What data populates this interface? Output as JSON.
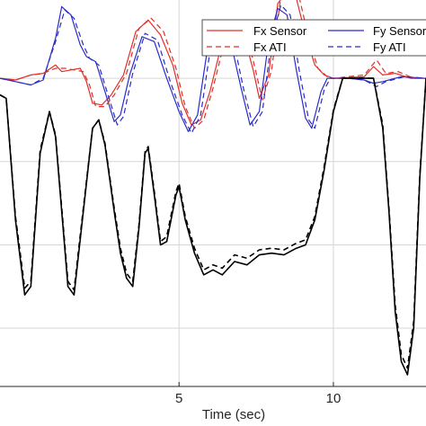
{
  "chart_data": {
    "type": "line",
    "xlabel": "Time (sec)",
    "ylabel": "",
    "title": "",
    "xlim": [
      -0.8,
      13.0
    ],
    "ylim": [
      -18.5,
      4.7
    ],
    "x_ticks": [
      5,
      10
    ],
    "y_grid": [
      -15,
      -10,
      -5,
      0
    ],
    "grid": true,
    "legend": {
      "placement": "top-right",
      "entries": [
        "Fx Sensor",
        "Fy Sensor",
        "Fx ATI",
        "Fy ATI"
      ]
    },
    "colors": {
      "Fx": "#e0302b",
      "Fy": "#2b2bc8",
      "Fz": "#000000",
      "grid": "#d6d6d6",
      "axis": "#262626"
    },
    "series": [
      {
        "name": "Fx Sensor",
        "color": "#e0302b",
        "style": "solid",
        "points": [
          [
            -0.8,
            0
          ],
          [
            -0.3,
            -0.1
          ],
          [
            0.2,
            0.2
          ],
          [
            0.6,
            0.3
          ],
          [
            1.0,
            0.8
          ],
          [
            1.2,
            0.4
          ],
          [
            1.5,
            0.5
          ],
          [
            1.8,
            0.6
          ],
          [
            2.0,
            -0.2
          ],
          [
            2.2,
            -1.5
          ],
          [
            2.5,
            -1.6
          ],
          [
            2.8,
            -1.0
          ],
          [
            3.2,
            0.2
          ],
          [
            3.6,
            2.8
          ],
          [
            4.0,
            3.5
          ],
          [
            4.4,
            2.6
          ],
          [
            4.8,
            0.8
          ],
          [
            5.1,
            -1.5
          ],
          [
            5.4,
            -2.8
          ],
          [
            5.7,
            -2.5
          ],
          [
            6.0,
            -0.8
          ],
          [
            6.4,
            2.2
          ],
          [
            6.8,
            3.2
          ],
          [
            7.1,
            2.6
          ],
          [
            7.4,
            0.5
          ],
          [
            7.6,
            -1.2
          ],
          [
            7.9,
            0.2
          ],
          [
            8.2,
            4.5
          ],
          [
            8.5,
            5.2
          ],
          [
            8.8,
            4.8
          ],
          [
            9.1,
            2.6
          ],
          [
            9.4,
            0.8
          ],
          [
            9.7,
            0.2
          ],
          [
            10.0,
            0
          ],
          [
            11.0,
            0.1
          ],
          [
            11.3,
            0.7
          ],
          [
            11.6,
            0.2
          ],
          [
            12.0,
            0.3
          ],
          [
            12.5,
            0
          ],
          [
            13.0,
            0
          ]
        ]
      },
      {
        "name": "Fy Sensor",
        "color": "#2b2bc8",
        "style": "solid",
        "points": [
          [
            -0.8,
            0
          ],
          [
            -0.3,
            -0.2
          ],
          [
            0.2,
            -0.4
          ],
          [
            0.6,
            -0.1
          ],
          [
            1.0,
            2.4
          ],
          [
            1.2,
            4.3
          ],
          [
            1.5,
            3.8
          ],
          [
            1.8,
            2.0
          ],
          [
            2.0,
            1.3
          ],
          [
            2.3,
            1.0
          ],
          [
            2.6,
            -0.8
          ],
          [
            2.9,
            -2.6
          ],
          [
            3.1,
            -2.2
          ],
          [
            3.4,
            0.2
          ],
          [
            3.8,
            2.5
          ],
          [
            4.2,
            2.2
          ],
          [
            4.6,
            0
          ],
          [
            5.0,
            -2.0
          ],
          [
            5.3,
            -3.2
          ],
          [
            5.6,
            -2.2
          ],
          [
            5.9,
            1.5
          ],
          [
            6.2,
            3.4
          ],
          [
            6.6,
            2.8
          ],
          [
            7.0,
            -0.5
          ],
          [
            7.3,
            -2.8
          ],
          [
            7.6,
            -2.0
          ],
          [
            7.9,
            2.2
          ],
          [
            8.2,
            4.2
          ],
          [
            8.5,
            3.8
          ],
          [
            8.8,
            0.5
          ],
          [
            9.1,
            -2.4
          ],
          [
            9.3,
            -3.0
          ],
          [
            9.6,
            -0.8
          ],
          [
            9.8,
            0
          ],
          [
            10.5,
            0
          ],
          [
            11.0,
            -0.1
          ],
          [
            11.3,
            -0.3
          ],
          [
            11.6,
            -0.2
          ],
          [
            12.2,
            0.1
          ],
          [
            13.0,
            0
          ]
        ]
      },
      {
        "name": "Fx ATI",
        "color": "#e0302b",
        "style": "dashed",
        "points": [
          [
            -0.8,
            0
          ],
          [
            -0.3,
            -0.1
          ],
          [
            0.2,
            0.2
          ],
          [
            0.6,
            0.3
          ],
          [
            1.0,
            0.6
          ],
          [
            1.3,
            0.6
          ],
          [
            1.6,
            0.5
          ],
          [
            1.9,
            0.4
          ],
          [
            2.1,
            -0.4
          ],
          [
            2.3,
            -1.7
          ],
          [
            2.6,
            -1.7
          ],
          [
            2.9,
            -1.0
          ],
          [
            3.3,
            0.3
          ],
          [
            3.7,
            3.0
          ],
          [
            4.1,
            3.6
          ],
          [
            4.5,
            2.8
          ],
          [
            4.9,
            0.6
          ],
          [
            5.2,
            -1.7
          ],
          [
            5.5,
            -3.0
          ],
          [
            5.8,
            -2.5
          ],
          [
            6.1,
            -0.6
          ],
          [
            6.5,
            2.4
          ],
          [
            6.9,
            3.3
          ],
          [
            7.2,
            2.6
          ],
          [
            7.5,
            0.3
          ],
          [
            7.7,
            -1.3
          ],
          [
            8.0,
            0.5
          ],
          [
            8.3,
            5.0
          ],
          [
            8.6,
            5.4
          ],
          [
            8.9,
            4.8
          ],
          [
            9.2,
            2.4
          ],
          [
            9.5,
            0.6
          ],
          [
            9.8,
            0.1
          ],
          [
            10.0,
            0
          ],
          [
            11.0,
            0.2
          ],
          [
            11.4,
            1.1
          ],
          [
            11.7,
            0.3
          ],
          [
            12.1,
            0.4
          ],
          [
            12.6,
            0
          ],
          [
            13.0,
            0
          ]
        ]
      },
      {
        "name": "Fy ATI",
        "color": "#2b2bc8",
        "style": "dashed",
        "points": [
          [
            -0.8,
            0
          ],
          [
            -0.3,
            -0.2
          ],
          [
            0.2,
            -0.4
          ],
          [
            0.6,
            0
          ],
          [
            1.0,
            2.2
          ],
          [
            1.3,
            4.1
          ],
          [
            1.6,
            3.6
          ],
          [
            1.9,
            2.0
          ],
          [
            2.1,
            1.2
          ],
          [
            2.4,
            0.8
          ],
          [
            2.7,
            -1.0
          ],
          [
            3.0,
            -2.8
          ],
          [
            3.2,
            -2.3
          ],
          [
            3.5,
            0.3
          ],
          [
            3.9,
            2.7
          ],
          [
            4.3,
            2.3
          ],
          [
            4.7,
            -0.1
          ],
          [
            5.1,
            -2.2
          ],
          [
            5.4,
            -3.3
          ],
          [
            5.7,
            -2.2
          ],
          [
            6.0,
            1.6
          ],
          [
            6.3,
            3.5
          ],
          [
            6.7,
            2.8
          ],
          [
            7.1,
            -0.7
          ],
          [
            7.4,
            -2.9
          ],
          [
            7.7,
            -2.0
          ],
          [
            8.0,
            2.4
          ],
          [
            8.3,
            4.4
          ],
          [
            8.6,
            3.8
          ],
          [
            8.9,
            0.4
          ],
          [
            9.2,
            -2.5
          ],
          [
            9.4,
            -3.0
          ],
          [
            9.7,
            -0.7
          ],
          [
            9.9,
            0
          ],
          [
            10.5,
            0
          ],
          [
            11.0,
            -0.1
          ],
          [
            11.4,
            -0.5
          ],
          [
            11.7,
            -0.2
          ],
          [
            12.3,
            0.1
          ],
          [
            13.0,
            0
          ]
        ]
      },
      {
        "name": "",
        "color": "#000000",
        "style": "solid",
        "points": [
          [
            -0.8,
            -1.0
          ],
          [
            -0.6,
            -1.2
          ],
          [
            -0.3,
            -8.5
          ],
          [
            0.0,
            -13.0
          ],
          [
            0.2,
            -12.5
          ],
          [
            0.5,
            -4.5
          ],
          [
            0.8,
            -2.0
          ],
          [
            1.0,
            -3.5
          ],
          [
            1.2,
            -8.0
          ],
          [
            1.4,
            -12.5
          ],
          [
            1.6,
            -13.0
          ],
          [
            1.9,
            -8.0
          ],
          [
            2.2,
            -3.0
          ],
          [
            2.4,
            -2.5
          ],
          [
            2.6,
            -4.0
          ],
          [
            2.9,
            -8.0
          ],
          [
            3.1,
            -10.5
          ],
          [
            3.3,
            -12.0
          ],
          [
            3.5,
            -12.5
          ],
          [
            3.7,
            -9.0
          ],
          [
            3.9,
            -4.5
          ],
          [
            4.0,
            -4.2
          ],
          [
            4.2,
            -7.0
          ],
          [
            4.4,
            -10.0
          ],
          [
            4.6,
            -9.8
          ],
          [
            4.9,
            -7.0
          ],
          [
            5.0,
            -6.5
          ],
          [
            5.2,
            -8.5
          ],
          [
            5.5,
            -10.5
          ],
          [
            5.8,
            -11.8
          ],
          [
            6.1,
            -11.5
          ],
          [
            6.4,
            -11.8
          ],
          [
            6.8,
            -11.0
          ],
          [
            7.2,
            -11.2
          ],
          [
            7.6,
            -10.6
          ],
          [
            8.0,
            -10.5
          ],
          [
            8.4,
            -10.6
          ],
          [
            8.8,
            -10.2
          ],
          [
            9.1,
            -10.0
          ],
          [
            9.4,
            -8.5
          ],
          [
            9.7,
            -5.5
          ],
          [
            10.0,
            -2.0
          ],
          [
            10.3,
            0
          ],
          [
            11.0,
            0
          ],
          [
            11.3,
            0
          ],
          [
            11.6,
            -3.0
          ],
          [
            11.8,
            -8.0
          ],
          [
            12.0,
            -14.0
          ],
          [
            12.2,
            -17.0
          ],
          [
            12.4,
            -17.8
          ],
          [
            12.6,
            -15.0
          ],
          [
            12.8,
            -6.0
          ],
          [
            13.0,
            0
          ]
        ]
      },
      {
        "name": "",
        "color": "#000000",
        "style": "dashed",
        "points": [
          [
            -0.8,
            -1.0
          ],
          [
            -0.6,
            -1.2
          ],
          [
            -0.3,
            -8.3
          ],
          [
            0.0,
            -12.6
          ],
          [
            0.2,
            -12.2
          ],
          [
            0.5,
            -4.3
          ],
          [
            0.8,
            -2.0
          ],
          [
            1.0,
            -3.4
          ],
          [
            1.2,
            -7.8
          ],
          [
            1.4,
            -12.2
          ],
          [
            1.6,
            -12.7
          ],
          [
            1.9,
            -7.8
          ],
          [
            2.2,
            -3.0
          ],
          [
            2.4,
            -2.5
          ],
          [
            2.6,
            -3.9
          ],
          [
            2.9,
            -7.8
          ],
          [
            3.1,
            -10.2
          ],
          [
            3.3,
            -11.7
          ],
          [
            3.5,
            -12.2
          ],
          [
            3.7,
            -8.8
          ],
          [
            3.9,
            -4.4
          ],
          [
            4.0,
            -4.1
          ],
          [
            4.2,
            -6.8
          ],
          [
            4.4,
            -9.8
          ],
          [
            4.6,
            -9.5
          ],
          [
            4.9,
            -6.8
          ],
          [
            5.0,
            -6.3
          ],
          [
            5.2,
            -8.3
          ],
          [
            5.5,
            -10.2
          ],
          [
            5.8,
            -11.5
          ],
          [
            6.1,
            -11.2
          ],
          [
            6.4,
            -11.4
          ],
          [
            6.8,
            -10.6
          ],
          [
            7.2,
            -10.8
          ],
          [
            7.6,
            -10.3
          ],
          [
            8.0,
            -10.2
          ],
          [
            8.4,
            -10.3
          ],
          [
            8.8,
            -9.9
          ],
          [
            9.1,
            -9.7
          ],
          [
            9.4,
            -8.3
          ],
          [
            9.7,
            -5.3
          ],
          [
            10.0,
            -1.9
          ],
          [
            10.3,
            0
          ],
          [
            11.0,
            0
          ],
          [
            11.3,
            0
          ],
          [
            11.6,
            -2.8
          ],
          [
            11.8,
            -7.8
          ],
          [
            12.0,
            -13.6
          ],
          [
            12.2,
            -16.6
          ],
          [
            12.4,
            -17.4
          ],
          [
            12.6,
            -14.6
          ],
          [
            12.8,
            -5.8
          ],
          [
            13.0,
            0
          ]
        ]
      }
    ]
  }
}
